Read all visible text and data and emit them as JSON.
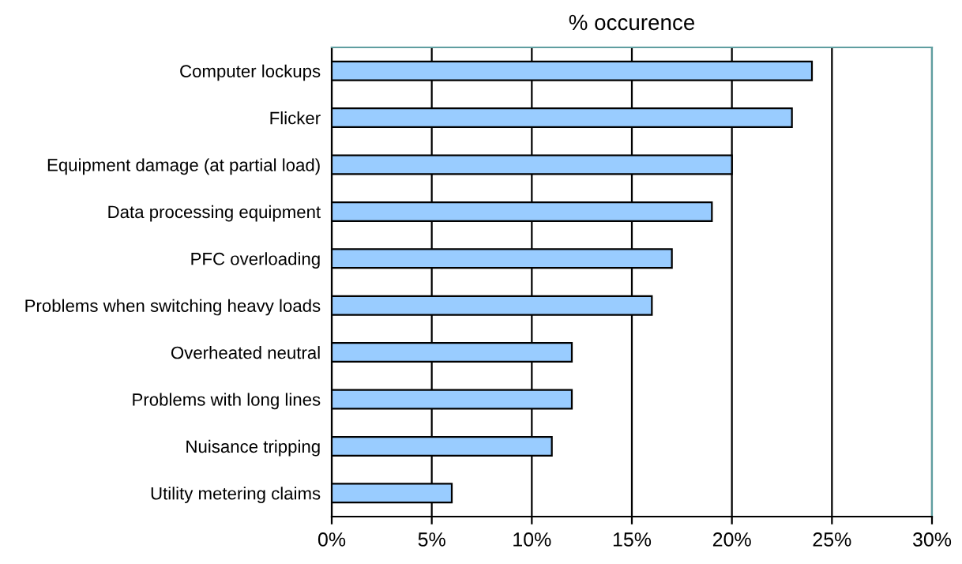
{
  "chart_data": {
    "type": "bar",
    "orientation": "horizontal",
    "title": "% occurence",
    "categories": [
      "Computer lockups",
      "Flicker",
      "Equipment damage (at partial load)",
      "Data processing equipment",
      "PFC overloading",
      "Problems when switching heavy loads",
      "Overheated neutral",
      "Problems with long lines",
      "Nuisance tripping",
      "Utility metering claims"
    ],
    "series": [
      {
        "color": "#99ccff",
        "values": [
          24,
          23,
          20,
          19,
          17,
          16,
          12,
          12,
          11,
          6
        ]
      }
    ],
    "xlim": [
      0,
      30
    ],
    "xticks": [
      {
        "value": 0,
        "label": "0%"
      },
      {
        "value": 5,
        "label": "5%"
      },
      {
        "value": 10,
        "label": "10%"
      },
      {
        "value": 15,
        "label": "15%"
      },
      {
        "value": 20,
        "label": "20%"
      },
      {
        "value": 25,
        "label": "25%"
      },
      {
        "value": 30,
        "label": "30%"
      }
    ],
    "grid": "x",
    "legend": false
  }
}
